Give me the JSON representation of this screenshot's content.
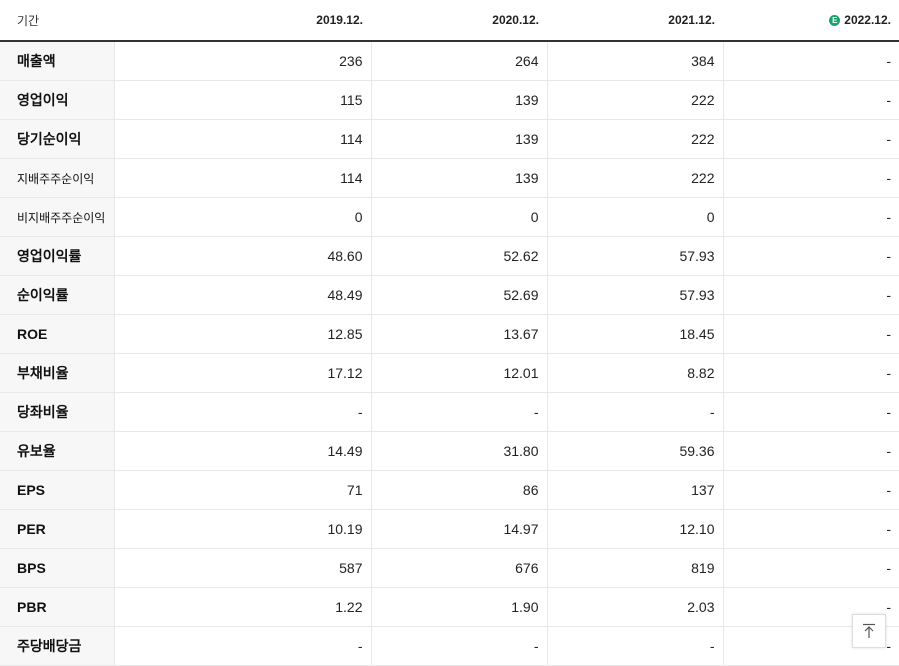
{
  "header": {
    "period_label": "기간",
    "periods": [
      "2019.12.",
      "2020.12.",
      "2021.12.",
      "2022.12."
    ],
    "estimate_badge": "E"
  },
  "rows": [
    {
      "label": "매출액",
      "values": [
        "236",
        "264",
        "384",
        "-"
      ]
    },
    {
      "label": "영업이익",
      "values": [
        "115",
        "139",
        "222",
        "-"
      ]
    },
    {
      "label": "당기순이익",
      "values": [
        "114",
        "139",
        "222",
        "-"
      ]
    },
    {
      "label": "지배주주순이익",
      "values": [
        "114",
        "139",
        "222",
        "-"
      ]
    },
    {
      "label": "비지배주주순이익",
      "values": [
        "0",
        "0",
        "0",
        "-"
      ]
    },
    {
      "label": "영업이익률",
      "values": [
        "48.60",
        "52.62",
        "57.93",
        "-"
      ]
    },
    {
      "label": "순이익률",
      "values": [
        "48.49",
        "52.69",
        "57.93",
        "-"
      ]
    },
    {
      "label": "ROE",
      "values": [
        "12.85",
        "13.67",
        "18.45",
        "-"
      ]
    },
    {
      "label": "부채비율",
      "values": [
        "17.12",
        "12.01",
        "8.82",
        "-"
      ]
    },
    {
      "label": "당좌비율",
      "values": [
        "-",
        "-",
        "-",
        "-"
      ]
    },
    {
      "label": "유보율",
      "values": [
        "14.49",
        "31.80",
        "59.36",
        "-"
      ]
    },
    {
      "label": "EPS",
      "values": [
        "71",
        "86",
        "137",
        "-"
      ]
    },
    {
      "label": "PER",
      "values": [
        "10.19",
        "14.97",
        "12.10",
        "-"
      ]
    },
    {
      "label": "BPS",
      "values": [
        "587",
        "676",
        "819",
        "-"
      ]
    },
    {
      "label": "PBR",
      "values": [
        "1.22",
        "1.90",
        "2.03",
        "-"
      ]
    },
    {
      "label": "주당배당금",
      "values": [
        "-",
        "-",
        "-",
        "-"
      ]
    }
  ],
  "colors": {
    "estimate_badge": "#1aa36b",
    "label_bg": "#f7f7f7",
    "header_rule": "#333333"
  },
  "scroll_top_icon": "arrow-up-to-line-icon"
}
